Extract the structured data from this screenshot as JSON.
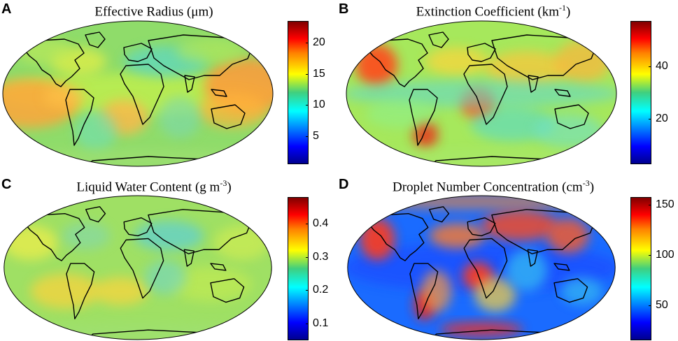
{
  "panels": [
    {
      "letter": "A",
      "title": "Effective Radius (μm)",
      "title_base": "Effective Radius (μm)",
      "title_sup": "",
      "title_end": "",
      "colorbar": {
        "ticks": [
          "20",
          "15",
          "10",
          "5"
        ],
        "tick_values": [
          20,
          15,
          10,
          5
        ],
        "range": [
          0.5,
          23.5
        ]
      },
      "map_style": "radius"
    },
    {
      "letter": "B",
      "title": "Extinction Coefficient (km-1)",
      "title_base": "Extinction Coefficient (km",
      "title_sup": "-1",
      "title_end": ")",
      "colorbar": {
        "ticks": [
          "40",
          "20"
        ],
        "tick_values": [
          40,
          20
        ],
        "range": [
          3,
          57
        ]
      },
      "map_style": "extinction"
    },
    {
      "letter": "C",
      "title": "Liquid Water Content (g m-3)",
      "title_base": "Liquid Water Content (g m",
      "title_sup": "-3",
      "title_end": ")",
      "colorbar": {
        "ticks": [
          "0.4",
          "0.3",
          "0.2",
          "0.1"
        ],
        "tick_values": [
          0.4,
          0.3,
          0.2,
          0.1
        ],
        "range": [
          0.05,
          0.48
        ]
      },
      "map_style": "lwc"
    },
    {
      "letter": "D",
      "title": "Droplet Number Concentration (cm-3)",
      "title_base": "Droplet Number Concentration (cm",
      "title_sup": "-3",
      "title_end": ")",
      "colorbar": {
        "ticks": [
          "150",
          "100",
          "50"
        ],
        "tick_values": [
          150,
          100,
          50
        ],
        "range": [
          15,
          158
        ]
      },
      "map_style": "droplet"
    }
  ],
  "colormap": "jet",
  "colors": {
    "dark_blue": "#00008f",
    "blue": "#0000ff",
    "cyan": "#00ffff",
    "green": "#3fcf7f",
    "yellow": "#ffff00",
    "orange": "#ff8000",
    "red": "#ff0000",
    "dark_red": "#800000",
    "coastline": "#000000"
  }
}
